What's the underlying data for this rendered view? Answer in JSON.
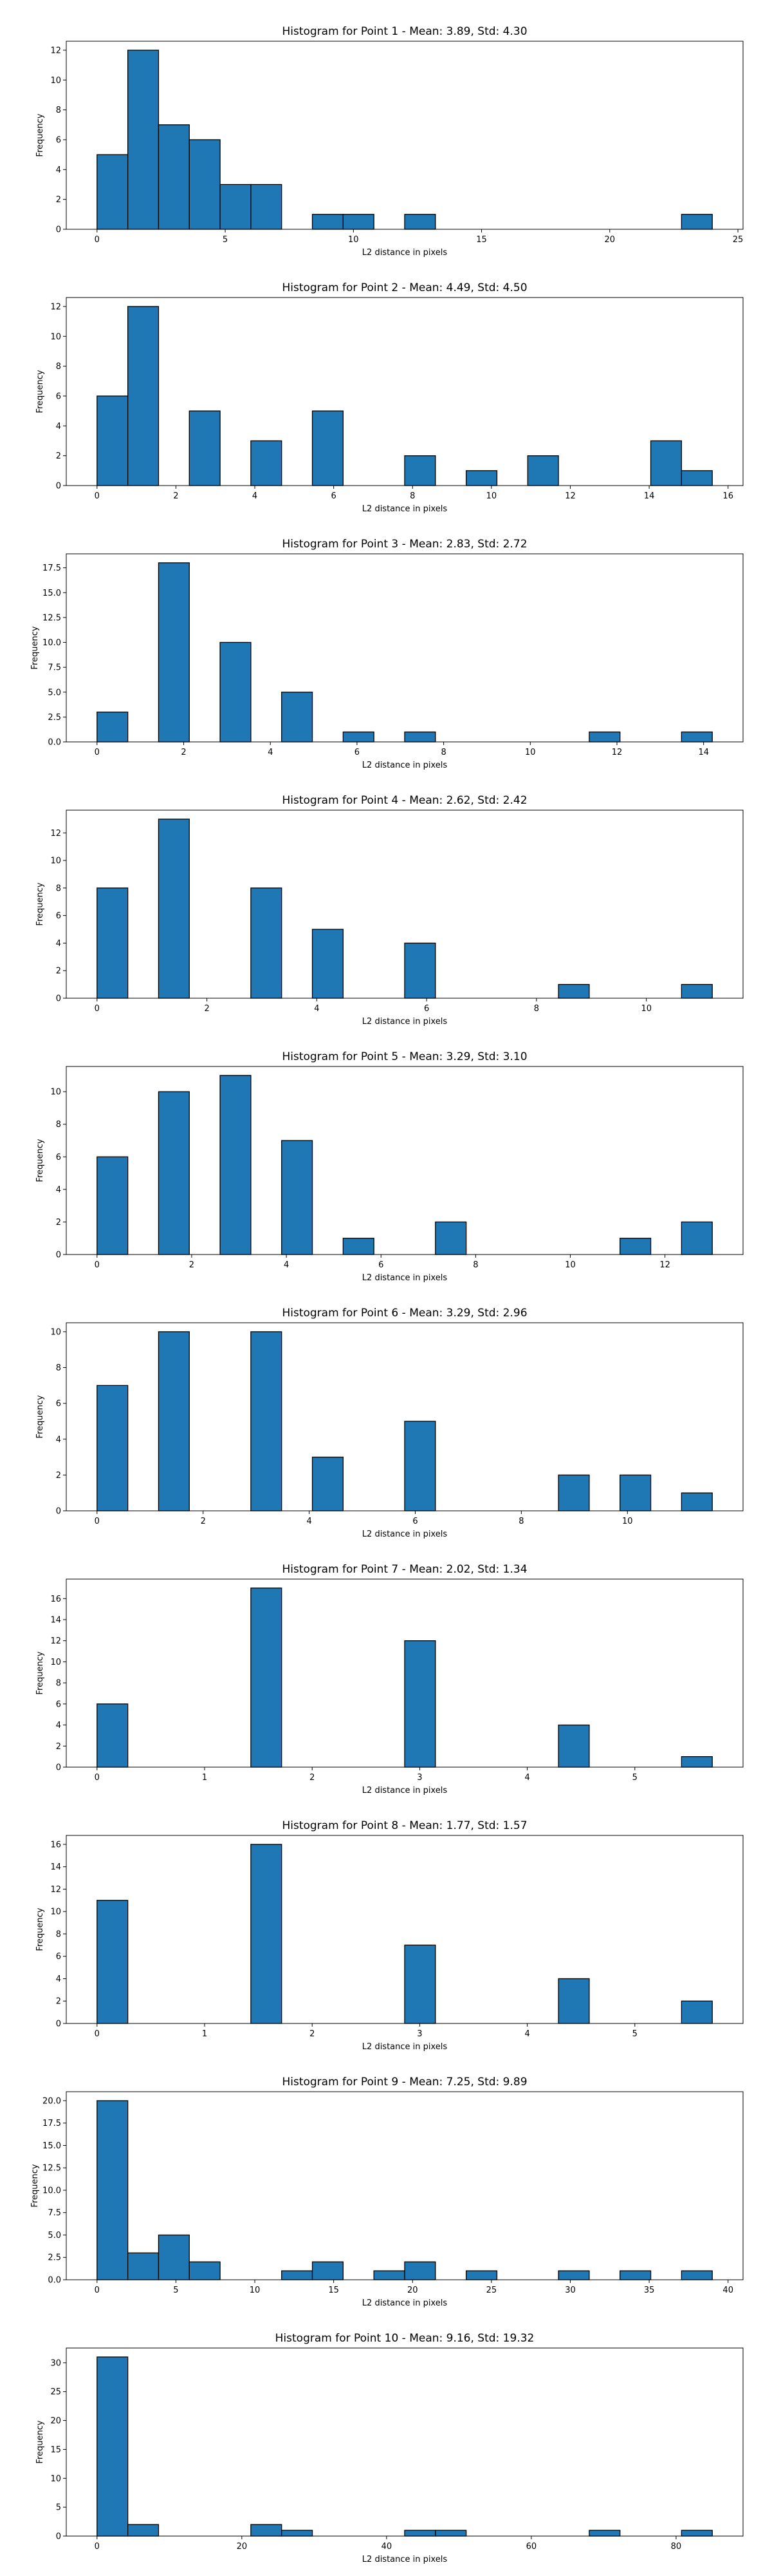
{
  "chart_data": [
    {
      "type": "bar",
      "title": "Histogram for Point 1 - Mean: 3.89, Std: 4.30",
      "xlabel": "L2 distance in pixels",
      "ylabel": "Frequency",
      "xlim": [
        -1.2,
        25.2
      ],
      "ylim": [
        0,
        12.6
      ],
      "xticks": [
        0,
        5,
        10,
        15,
        20,
        25
      ],
      "yticks": [
        0,
        2,
        4,
        6,
        8,
        10,
        12
      ],
      "ytick_labels": [
        "0",
        "2",
        "4",
        "6",
        "8",
        "10",
        "12"
      ],
      "bin_edges": [
        0,
        1.2,
        2.4,
        3.6,
        4.8,
        6.0,
        7.2,
        8.4,
        9.6,
        10.8,
        12.0,
        13.2,
        14.4,
        15.6,
        16.8,
        18.0,
        19.2,
        20.4,
        21.6,
        22.8,
        24.0
      ],
      "counts": [
        5,
        12,
        7,
        6,
        3,
        3,
        0,
        1,
        1,
        0,
        1,
        0,
        0,
        0,
        0,
        0,
        0,
        0,
        0,
        1
      ]
    },
    {
      "type": "bar",
      "title": "Histogram for Point 2 - Mean: 4.49, Std: 4.50",
      "xlabel": "L2 distance in pixels",
      "ylabel": "Frequency",
      "xlim": [
        -0.78,
        16.38
      ],
      "ylim": [
        0,
        12.6
      ],
      "xticks": [
        0,
        2,
        4,
        6,
        8,
        10,
        12,
        14,
        16
      ],
      "yticks": [
        0,
        2,
        4,
        6,
        8,
        10,
        12
      ],
      "ytick_labels": [
        "0",
        "2",
        "4",
        "6",
        "8",
        "10",
        "12"
      ],
      "bin_edges": [
        0,
        0.78,
        1.56,
        2.34,
        3.12,
        3.9,
        4.68,
        5.46,
        6.24,
        7.02,
        7.8,
        8.58,
        9.36,
        10.14,
        10.92,
        11.7,
        12.48,
        13.26,
        14.04,
        14.82,
        15.6
      ],
      "counts": [
        6,
        12,
        0,
        5,
        0,
        3,
        0,
        5,
        0,
        0,
        2,
        0,
        1,
        0,
        2,
        0,
        0,
        0,
        3,
        1
      ]
    },
    {
      "type": "bar",
      "title": "Histogram for Point 3 - Mean: 2.83, Std: 2.72",
      "xlabel": "L2 distance in pixels",
      "ylabel": "Frequency",
      "xlim": [
        -0.71,
        14.91
      ],
      "ylim": [
        0,
        18.9
      ],
      "xticks": [
        0,
        2,
        4,
        6,
        8,
        10,
        12,
        14
      ],
      "yticks": [
        0,
        2.5,
        5,
        7.5,
        10,
        12.5,
        15,
        17.5
      ],
      "ytick_labels": [
        "0.0",
        "2.5",
        "5.0",
        "7.5",
        "10.0",
        "12.5",
        "15.0",
        "17.5"
      ],
      "bin_edges": [
        0,
        0.71,
        1.42,
        2.13,
        2.84,
        3.55,
        4.26,
        4.97,
        5.68,
        6.39,
        7.1,
        7.81,
        8.52,
        9.23,
        9.94,
        10.65,
        11.36,
        12.07,
        12.78,
        13.49,
        14.2
      ],
      "counts": [
        3,
        0,
        18,
        0,
        10,
        0,
        5,
        0,
        1,
        0,
        1,
        0,
        0,
        0,
        0,
        0,
        1,
        0,
        0,
        1
      ]
    },
    {
      "type": "bar",
      "title": "Histogram for Point 4 - Mean: 2.62, Std: 2.42",
      "xlabel": "L2 distance in pixels",
      "ylabel": "Frequency",
      "xlim": [
        -0.56,
        11.76
      ],
      "ylim": [
        0,
        13.65
      ],
      "xticks": [
        0,
        2,
        4,
        6,
        8,
        10
      ],
      "yticks": [
        0,
        2,
        4,
        6,
        8,
        10,
        12
      ],
      "ytick_labels": [
        "0",
        "2",
        "4",
        "6",
        "8",
        "10",
        "12"
      ],
      "bin_edges": [
        0,
        0.56,
        1.12,
        1.68,
        2.24,
        2.8,
        3.36,
        3.92,
        4.48,
        5.04,
        5.6,
        6.16,
        6.72,
        7.28,
        7.84,
        8.4,
        8.96,
        9.52,
        10.08,
        10.64,
        11.2
      ],
      "counts": [
        8,
        0,
        13,
        0,
        0,
        8,
        0,
        5,
        0,
        0,
        4,
        0,
        0,
        0,
        0,
        1,
        0,
        0,
        0,
        1
      ]
    },
    {
      "type": "bar",
      "title": "Histogram for Point 5 - Mean: 3.29, Std: 3.10",
      "xlabel": "L2 distance in pixels",
      "ylabel": "Frequency",
      "xlim": [
        -0.65,
        13.65
      ],
      "ylim": [
        0,
        11.55
      ],
      "xticks": [
        0,
        2,
        4,
        6,
        8,
        10,
        12
      ],
      "yticks": [
        0,
        2,
        4,
        6,
        8,
        10
      ],
      "ytick_labels": [
        "0",
        "2",
        "4",
        "6",
        "8",
        "10"
      ],
      "bin_edges": [
        0,
        0.65,
        1.3,
        1.95,
        2.6,
        3.25,
        3.9,
        4.55,
        5.2,
        5.85,
        6.5,
        7.15,
        7.8,
        8.45,
        9.1,
        9.75,
        10.4,
        11.05,
        11.7,
        12.35,
        13.0
      ],
      "counts": [
        6,
        0,
        10,
        0,
        11,
        0,
        7,
        0,
        1,
        0,
        0,
        2,
        0,
        0,
        0,
        0,
        0,
        1,
        0,
        2
      ]
    },
    {
      "type": "bar",
      "title": "Histogram for Point 6 - Mean: 3.29, Std: 2.96",
      "xlabel": "L2 distance in pixels",
      "ylabel": "Frequency",
      "xlim": [
        -0.58,
        12.18
      ],
      "ylim": [
        0,
        10.5
      ],
      "xticks": [
        0,
        2,
        4,
        6,
        8,
        10
      ],
      "yticks": [
        0,
        2,
        4,
        6,
        8,
        10
      ],
      "ytick_labels": [
        "0",
        "2",
        "4",
        "6",
        "8",
        "10"
      ],
      "bin_edges": [
        0,
        0.58,
        1.16,
        1.74,
        2.32,
        2.9,
        3.48,
        4.06,
        4.64,
        5.22,
        5.8,
        6.38,
        6.96,
        7.54,
        8.12,
        8.7,
        9.28,
        9.86,
        10.44,
        11.02,
        11.6
      ],
      "counts": [
        7,
        0,
        10,
        0,
        0,
        10,
        0,
        3,
        0,
        0,
        5,
        0,
        0,
        0,
        0,
        2,
        0,
        2,
        0,
        1
      ]
    },
    {
      "type": "bar",
      "title": "Histogram for Point 7 - Mean: 2.02, Std: 1.34",
      "xlabel": "L2 distance in pixels",
      "ylabel": "Frequency",
      "xlim": [
        -0.286,
        6.006
      ],
      "ylim": [
        0,
        17.85
      ],
      "xticks": [
        0,
        1,
        2,
        3,
        4,
        5
      ],
      "yticks": [
        0,
        2,
        4,
        6,
        8,
        10,
        12,
        14,
        16
      ],
      "ytick_labels": [
        "0",
        "2",
        "4",
        "6",
        "8",
        "10",
        "12",
        "14",
        "16"
      ],
      "bin_edges": [
        0,
        0.286,
        0.572,
        0.858,
        1.144,
        1.43,
        1.716,
        2.002,
        2.288,
        2.574,
        2.86,
        3.146,
        3.432,
        3.718,
        4.004,
        4.29,
        4.576,
        4.862,
        5.148,
        5.434,
        5.72
      ],
      "counts": [
        6,
        0,
        0,
        0,
        0,
        17,
        0,
        0,
        0,
        0,
        12,
        0,
        0,
        0,
        0,
        4,
        0,
        0,
        0,
        1
      ]
    },
    {
      "type": "bar",
      "title": "Histogram for Point 8 - Mean: 1.77, Std: 1.57",
      "xlabel": "L2 distance in pixels",
      "ylabel": "Frequency",
      "xlim": [
        -0.286,
        6.006
      ],
      "ylim": [
        0,
        16.8
      ],
      "xticks": [
        0,
        1,
        2,
        3,
        4,
        5
      ],
      "yticks": [
        0,
        2,
        4,
        6,
        8,
        10,
        12,
        14,
        16
      ],
      "ytick_labels": [
        "0",
        "2",
        "4",
        "6",
        "8",
        "10",
        "12",
        "14",
        "16"
      ],
      "bin_edges": [
        0,
        0.286,
        0.572,
        0.858,
        1.144,
        1.43,
        1.716,
        2.002,
        2.288,
        2.574,
        2.86,
        3.146,
        3.432,
        3.718,
        4.004,
        4.29,
        4.576,
        4.862,
        5.148,
        5.434,
        5.72
      ],
      "counts": [
        11,
        0,
        0,
        0,
        0,
        16,
        0,
        0,
        0,
        0,
        7,
        0,
        0,
        0,
        0,
        4,
        0,
        0,
        0,
        2
      ]
    },
    {
      "type": "bar",
      "title": "Histogram for Point 9 - Mean: 7.25, Std: 9.89",
      "xlabel": "L2 distance in pixels",
      "ylabel": "Frequency",
      "xlim": [
        -1.95,
        40.95
      ],
      "ylim": [
        0,
        21
      ],
      "xticks": [
        0,
        5,
        10,
        15,
        20,
        25,
        30,
        35,
        40
      ],
      "yticks": [
        0,
        2.5,
        5,
        7.5,
        10,
        12.5,
        15,
        17.5,
        20
      ],
      "ytick_labels": [
        "0.0",
        "2.5",
        "5.0",
        "7.5",
        "10.0",
        "12.5",
        "15.0",
        "17.5",
        "20.0"
      ],
      "bin_edges": [
        0,
        1.95,
        3.9,
        5.85,
        7.8,
        9.75,
        11.7,
        13.65,
        15.6,
        17.55,
        19.5,
        21.45,
        23.4,
        25.35,
        27.3,
        29.25,
        31.2,
        33.15,
        35.1,
        37.05,
        39.0
      ],
      "counts": [
        20,
        3,
        5,
        2,
        0,
        0,
        1,
        2,
        0,
        1,
        2,
        0,
        1,
        0,
        0,
        1,
        0,
        1,
        0,
        1
      ]
    },
    {
      "type": "bar",
      "title": "Histogram for Point 10 - Mean: 9.16, Std: 19.32",
      "xlabel": "L2 distance in pixels",
      "ylabel": "Frequency",
      "xlim": [
        -4.25,
        89.25
      ],
      "ylim": [
        0,
        32.55
      ],
      "xticks": [
        0,
        20,
        40,
        60,
        80
      ],
      "yticks": [
        0,
        5,
        10,
        15,
        20,
        25,
        30
      ],
      "ytick_labels": [
        "0",
        "5",
        "10",
        "15",
        "20",
        "25",
        "30"
      ],
      "bin_edges": [
        0,
        4.25,
        8.5,
        12.75,
        17.0,
        21.25,
        25.5,
        29.75,
        34.0,
        38.25,
        42.5,
        46.75,
        51.0,
        55.25,
        59.5,
        63.75,
        68.0,
        72.25,
        76.5,
        80.75,
        85.0
      ],
      "counts": [
        31,
        2,
        0,
        0,
        0,
        2,
        1,
        0,
        0,
        0,
        1,
        1,
        0,
        0,
        0,
        0,
        1,
        0,
        0,
        1
      ]
    }
  ],
  "colors": {
    "bar_fill": "#1f77b4",
    "bar_edge": "#000000"
  }
}
